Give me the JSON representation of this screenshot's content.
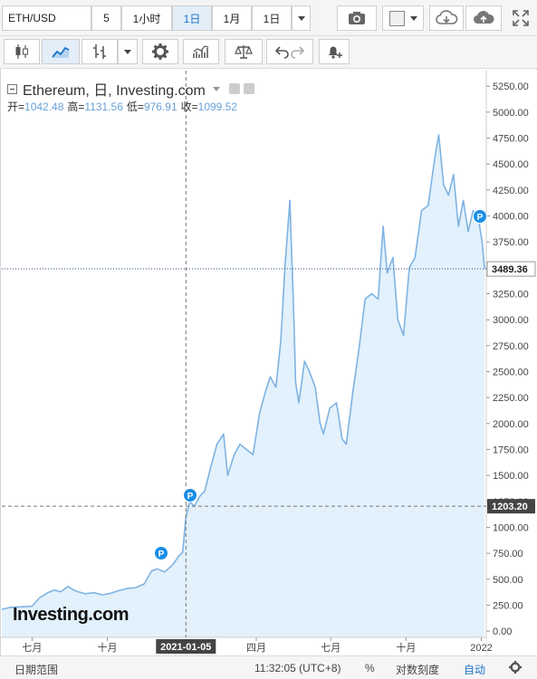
{
  "toolbar": {
    "symbol": "ETH/USD",
    "interval_short": "5",
    "interval_hour": "1小时",
    "interval_day": "1日",
    "range_month": "1月",
    "range_day": "1日"
  },
  "legend": {
    "title": "Ethereum, 日, Investing.com",
    "open_label": "开=",
    "open": "1042.48",
    "high_label": "高=",
    "high": "1131.56",
    "low_label": "低=",
    "low": "976.91",
    "close_label": "收=",
    "close": "1099.52"
  },
  "cursor": {
    "price_label": "1203.20",
    "date_label": "2021-01-05",
    "last_price_label": "3489.36"
  },
  "watermark": "Investing.com",
  "bottom_bar": {
    "date_range": "日期范围",
    "time": "11:32:05 (UTC+8)",
    "percent": "%",
    "log_scale": "对数刻度",
    "auto": "自动"
  },
  "colors": {
    "series_line": "#7fb3e2",
    "area_fill": "#e2f1fb",
    "accent": "#1a73c8",
    "marker": "#1a8ee6"
  },
  "chart_data": {
    "type": "area",
    "y_ticks": [
      0,
      250,
      500,
      750,
      1000,
      1250,
      1500,
      1750,
      2000,
      2250,
      2500,
      2750,
      3000,
      3250,
      3500,
      3750,
      4000,
      4250,
      4500,
      4750,
      5000,
      5250
    ],
    "y_tick_labels": [
      "0.00",
      "250.00",
      "500.00",
      "750.00",
      "1000.00",
      "1250.00",
      "1500.00",
      "1750.00",
      "2000.00",
      "2250.00",
      "2500.00",
      "2750.00",
      "3000.00",
      "3250.00",
      "3500.00",
      "3750.00",
      "4000.00",
      "4250.00",
      "4500.00",
      "4750.00",
      "5000.00",
      "5250.00"
    ],
    "ylim": [
      -60,
      5400
    ],
    "x_ticks": [
      {
        "label": "七月",
        "date": "2020-07-01"
      },
      {
        "label": "十月",
        "date": "2020-10-01"
      },
      {
        "label": "四月",
        "date": "2021-04-01"
      },
      {
        "label": "七月",
        "date": "2021-07-01"
      },
      {
        "label": "十月",
        "date": "2021-10-01"
      },
      {
        "label": "2022",
        "date": "2022-01-01"
      }
    ],
    "xlim": [
      "2020-05-25",
      "2022-01-06"
    ],
    "crosshair": {
      "date": "2021-01-05",
      "value": 1203.2
    },
    "last_value": 3489.36,
    "series": [
      {
        "x": [
          "2020-05-25",
          "2020-06-05",
          "2020-06-20",
          "2020-07-01",
          "2020-07-10",
          "2020-07-20",
          "2020-07-28",
          "2020-08-05",
          "2020-08-14",
          "2020-08-20",
          "2020-08-26",
          "2020-09-04",
          "2020-09-15",
          "2020-09-25",
          "2020-10-05",
          "2020-10-15",
          "2020-10-25",
          "2020-11-05",
          "2020-11-15",
          "2020-11-24",
          "2020-12-01",
          "2020-12-10",
          "2020-12-20",
          "2020-12-28",
          "2021-01-01",
          "2021-01-05",
          "2021-01-10",
          "2021-01-15",
          "2021-01-22",
          "2021-01-28",
          "2021-02-05",
          "2021-02-12",
          "2021-02-20",
          "2021-02-25",
          "2021-03-05",
          "2021-03-12",
          "2021-03-20",
          "2021-03-28",
          "2021-04-05",
          "2021-04-12",
          "2021-04-18",
          "2021-04-25",
          "2021-05-01",
          "2021-05-06",
          "2021-05-12",
          "2021-05-17",
          "2021-05-19",
          "2021-05-23",
          "2021-05-30",
          "2021-06-05",
          "2021-06-12",
          "2021-06-18",
          "2021-06-22",
          "2021-06-30",
          "2021-07-08",
          "2021-07-15",
          "2021-07-20",
          "2021-07-28",
          "2021-08-05",
          "2021-08-12",
          "2021-08-20",
          "2021-08-28",
          "2021-09-03",
          "2021-09-08",
          "2021-09-15",
          "2021-09-21",
          "2021-09-28",
          "2021-10-05",
          "2021-10-12",
          "2021-10-20",
          "2021-10-28",
          "2021-11-05",
          "2021-11-10",
          "2021-11-16",
          "2021-11-22",
          "2021-11-28",
          "2021-12-04",
          "2021-12-10",
          "2021-12-16",
          "2021-12-22",
          "2021-12-28",
          "2022-01-02",
          "2022-01-05"
        ],
        "values": [
          210,
          230,
          235,
          240,
          320,
          370,
          395,
          380,
          430,
          400,
          380,
          360,
          370,
          350,
          365,
          390,
          410,
          420,
          455,
          580,
          600,
          570,
          640,
          730,
          760,
          1100,
          1250,
          1200,
          1300,
          1350,
          1600,
          1800,
          1900,
          1500,
          1700,
          1800,
          1750,
          1700,
          2100,
          2300,
          2450,
          2350,
          2800,
          3500,
          4150,
          3000,
          2400,
          2200,
          2600,
          2500,
          2350,
          2000,
          1900,
          2150,
          2200,
          1850,
          1800,
          2300,
          2750,
          3200,
          3250,
          3200,
          3900,
          3450,
          3600,
          3000,
          2850,
          3500,
          3600,
          4050,
          4100,
          4550,
          4780,
          4300,
          4200,
          4400,
          3900,
          4150,
          3850,
          4050,
          4000,
          3750,
          3489.36
        ]
      }
    ]
  }
}
